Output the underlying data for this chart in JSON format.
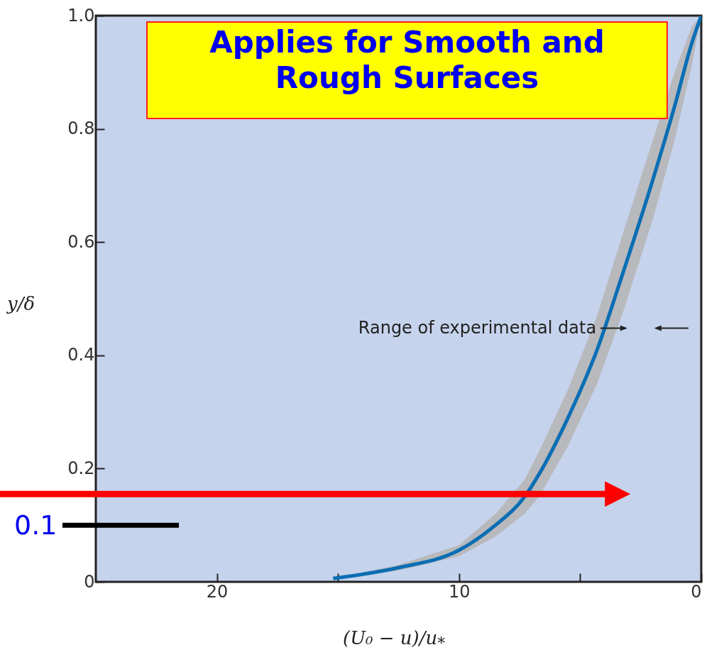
{
  "chart_data": {
    "type": "line",
    "title": "Applies for Smooth and Rough Surfaces",
    "xlabel": "(U₀ − u)/u$_{*}$",
    "ylabel": "y/δ",
    "x": [
      15.2,
      12.5,
      10,
      8.5,
      7.3,
      6.7,
      5.5,
      4.3,
      3.2,
      2,
      1.1,
      0.4,
      0
    ],
    "series": [
      {
        "color": "#0a6eb4",
        "values": [
          0.006,
          0.025,
          0.056,
          0.1,
          0.15,
          0.19,
          0.29,
          0.41,
          0.55,
          0.71,
          0.84,
          0.95,
          1.0
        ],
        "lower": [
          0.006,
          0.02,
          0.045,
          0.08,
          0.12,
          0.15,
          0.24,
          0.35,
          0.48,
          0.64,
          0.78,
          0.91,
          1.0
        ],
        "upper": [
          0.006,
          0.03,
          0.065,
          0.12,
          0.18,
          0.23,
          0.34,
          0.47,
          0.62,
          0.78,
          0.9,
          0.98,
          1.0
        ]
      }
    ],
    "xlim": [
      25,
      0
    ],
    "xticks": [
      20,
      {
        "value": 15,
        "label": null
      },
      10,
      {
        "value": 5,
        "label": null
      },
      0
    ],
    "ylim": [
      0,
      1
    ],
    "yticks": [
      0,
      0.2,
      0.4,
      0.6,
      0.8,
      {
        "value": 1,
        "label": "1.0"
      }
    ],
    "grid": false,
    "ref_lines": [
      {
        "axis": "y",
        "value": 0.155,
        "color": "#ff0000"
      },
      {
        "axis": "y",
        "value": 0.1,
        "label": "0.1",
        "color": "#000000"
      }
    ],
    "annotations": [
      "Range of experimental data"
    ]
  }
}
